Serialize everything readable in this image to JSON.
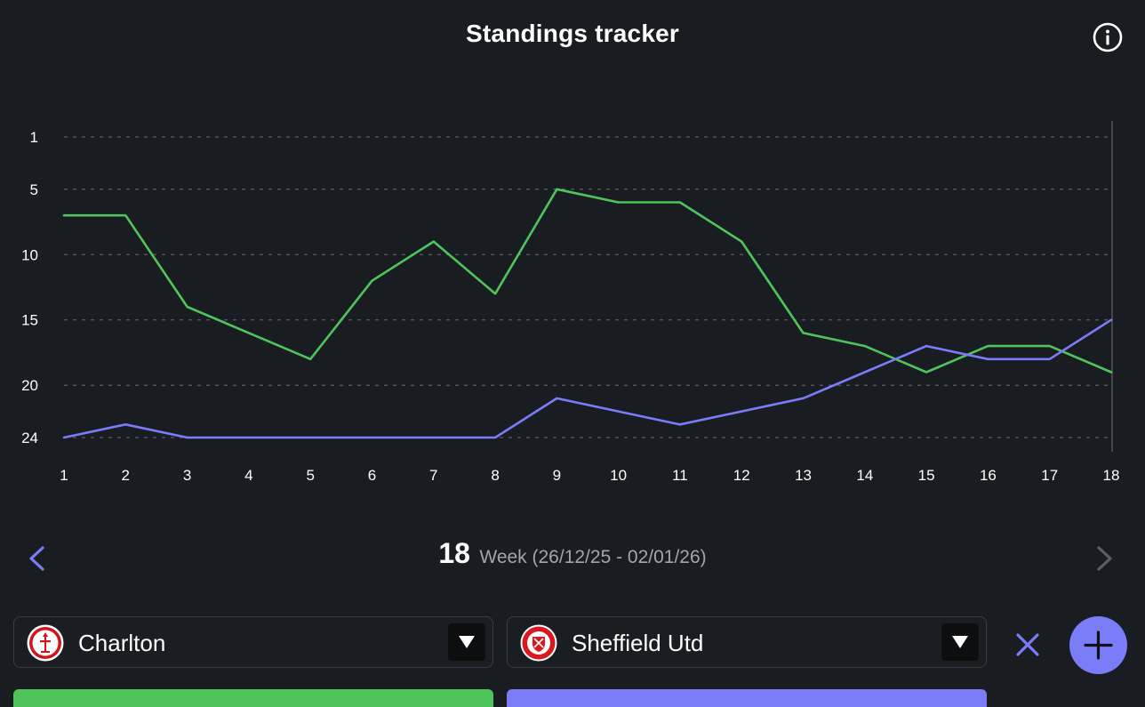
{
  "header": {
    "title": "Standings tracker",
    "info_icon": "info-circle-icon"
  },
  "chart_data": {
    "type": "line",
    "x": [
      1,
      2,
      3,
      4,
      5,
      6,
      7,
      8,
      9,
      10,
      11,
      12,
      13,
      14,
      15,
      16,
      17,
      18
    ],
    "x_ticks": [
      "1",
      "2",
      "3",
      "4",
      "5",
      "6",
      "7",
      "8",
      "9",
      "10",
      "11",
      "12",
      "13",
      "14",
      "15",
      "16",
      "17",
      "18"
    ],
    "y_ticks": [
      "1",
      "5",
      "10",
      "15",
      "20",
      "24"
    ],
    "y_tick_values": [
      1,
      5,
      10,
      15,
      20,
      24
    ],
    "ylim": [
      1,
      24
    ],
    "y_inverted": true,
    "grid": "dashed horizontal",
    "series": [
      {
        "name": "Charlton",
        "color": "#4fc45b",
        "values": [
          7,
          7,
          14,
          16,
          18,
          12,
          9,
          13,
          5,
          6,
          6,
          9,
          16,
          17,
          19,
          17,
          17,
          19
        ]
      },
      {
        "name": "Sheffield Utd",
        "color": "#7b7cf7",
        "values": [
          24,
          23,
          24,
          24,
          24,
          24,
          24,
          24,
          21,
          22,
          23,
          22,
          21,
          19,
          17,
          18,
          18,
          15
        ]
      }
    ]
  },
  "week_nav": {
    "current_week": "18",
    "label": "Week (26/12/25 - 02/01/26)",
    "prev_icon": "chevron-left-icon",
    "next_icon": "chevron-right-icon",
    "prev_color": "#7b7cf7",
    "next_color": "#5a5e62"
  },
  "team_selectors": [
    {
      "name": "Charlton",
      "crest": "charlton-crest-icon",
      "color": "#4fc45b"
    },
    {
      "name": "Sheffield Utd",
      "crest": "sheffield-utd-crest-icon",
      "color": "#7b7cf7"
    }
  ],
  "actions": {
    "clear_icon": "close-icon",
    "add_icon": "plus-icon",
    "accent": "#7b7cf7"
  }
}
